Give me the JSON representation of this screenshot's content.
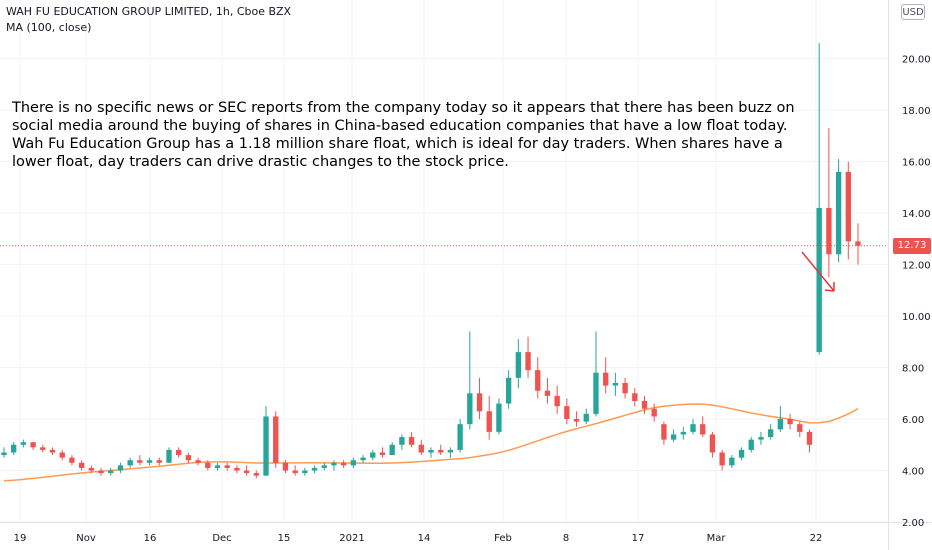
{
  "header": {
    "title": "WAH FU EDUCATION GROUP LIMITED, 1h, Cboe BZX",
    "indicator": "MA (100, close)",
    "currency": "USD"
  },
  "annotation": "There is no specific news or SEC reports from the company today so it appears that there has been buzz on social media around the buying of shares in China-based education companies that have a low float today. Wah Fu Education Group has a 1.18 million share float, which is ideal for day traders. When shares have a lower float, day traders can drive drastic changes to the stock price.",
  "last_price": "12.73",
  "colors": {
    "up": "#26a69a",
    "down": "#ef5350",
    "ma": "#ff9a52",
    "arrow": "#e53935",
    "price_line": "#ef5350"
  },
  "chart_data": {
    "type": "candlestick",
    "x_axis_labels": [
      "19",
      "Nov",
      "16",
      "Dec",
      "15",
      "2021",
      "14",
      "Feb",
      "8",
      "17",
      "Mar",
      "22"
    ],
    "y_axis_labels": [
      "2.00",
      "4.00",
      "6.00",
      "8.00",
      "10.00",
      "12.00",
      "14.00",
      "16.00",
      "18.00",
      "20.00"
    ],
    "ylim": [
      2.0,
      21.5
    ],
    "last_value": 12.73,
    "ma_period": 100,
    "candles": [
      [
        4.6,
        4.9,
        4.5,
        4.7
      ],
      [
        4.7,
        5.1,
        4.6,
        5.0
      ],
      [
        5.0,
        5.2,
        4.9,
        5.1
      ],
      [
        5.1,
        5.1,
        4.8,
        4.9
      ],
      [
        4.9,
        5.0,
        4.7,
        4.8
      ],
      [
        4.8,
        4.9,
        4.6,
        4.7
      ],
      [
        4.7,
        4.8,
        4.4,
        4.5
      ],
      [
        4.5,
        4.6,
        4.2,
        4.3
      ],
      [
        4.3,
        4.4,
        4.0,
        4.1
      ],
      [
        4.1,
        4.2,
        3.9,
        4.0
      ],
      [
        4.0,
        4.1,
        3.8,
        3.9
      ],
      [
        3.9,
        4.1,
        3.8,
        4.0
      ],
      [
        4.0,
        4.3,
        3.9,
        4.2
      ],
      [
        4.2,
        4.5,
        4.1,
        4.4
      ],
      [
        4.4,
        4.6,
        4.2,
        4.3
      ],
      [
        4.3,
        4.5,
        4.2,
        4.4
      ],
      [
        4.4,
        4.5,
        4.2,
        4.3
      ],
      [
        4.3,
        4.9,
        4.3,
        4.8
      ],
      [
        4.8,
        4.9,
        4.5,
        4.6
      ],
      [
        4.6,
        4.7,
        4.3,
        4.4
      ],
      [
        4.4,
        4.5,
        4.2,
        4.3
      ],
      [
        4.3,
        4.4,
        4.0,
        4.1
      ],
      [
        4.1,
        4.3,
        4.0,
        4.2
      ],
      [
        4.2,
        4.3,
        4.0,
        4.1
      ],
      [
        4.1,
        4.2,
        3.9,
        4.0
      ],
      [
        4.0,
        4.2,
        3.8,
        3.9
      ],
      [
        3.9,
        4.0,
        3.7,
        3.8
      ],
      [
        3.8,
        6.5,
        3.8,
        6.1
      ],
      [
        6.1,
        6.3,
        4.1,
        4.3
      ],
      [
        4.3,
        4.4,
        3.9,
        4.0
      ],
      [
        4.0,
        4.2,
        3.8,
        3.9
      ],
      [
        3.9,
        4.1,
        3.8,
        4.0
      ],
      [
        4.0,
        4.2,
        3.9,
        4.1
      ],
      [
        4.1,
        4.3,
        4.0,
        4.2
      ],
      [
        4.2,
        4.4,
        4.0,
        4.3
      ],
      [
        4.3,
        4.4,
        4.1,
        4.2
      ],
      [
        4.2,
        4.5,
        4.1,
        4.4
      ],
      [
        4.4,
        4.6,
        4.3,
        4.5
      ],
      [
        4.5,
        4.8,
        4.4,
        4.7
      ],
      [
        4.7,
        4.9,
        4.5,
        4.6
      ],
      [
        4.6,
        5.1,
        4.6,
        5.0
      ],
      [
        5.0,
        5.4,
        4.8,
        5.3
      ],
      [
        5.3,
        5.5,
        4.9,
        5.0
      ],
      [
        5.0,
        5.2,
        4.6,
        4.7
      ],
      [
        4.7,
        4.9,
        4.5,
        4.8
      ],
      [
        4.8,
        5.0,
        4.6,
        4.7
      ],
      [
        4.7,
        4.9,
        4.5,
        4.8
      ],
      [
        4.8,
        6.0,
        4.7,
        5.8
      ],
      [
        5.8,
        9.4,
        5.6,
        7.0
      ],
      [
        7.0,
        7.6,
        6.0,
        6.3
      ],
      [
        6.3,
        6.9,
        5.2,
        5.5
      ],
      [
        5.5,
        6.8,
        5.4,
        6.6
      ],
      [
        6.6,
        7.9,
        6.4,
        7.6
      ],
      [
        7.6,
        9.1,
        7.2,
        8.6
      ],
      [
        8.6,
        9.2,
        7.6,
        7.9
      ],
      [
        7.9,
        8.4,
        6.8,
        7.1
      ],
      [
        7.1,
        7.6,
        6.6,
        6.9
      ],
      [
        6.9,
        7.3,
        6.2,
        6.5
      ],
      [
        6.5,
        6.8,
        5.8,
        6.0
      ],
      [
        6.0,
        6.3,
        5.7,
        5.9
      ],
      [
        5.9,
        6.4,
        5.8,
        6.2
      ],
      [
        6.2,
        9.4,
        6.1,
        7.8
      ],
      [
        7.8,
        8.4,
        7.0,
        7.3
      ],
      [
        7.3,
        7.8,
        6.9,
        7.4
      ],
      [
        7.4,
        7.6,
        6.8,
        7.0
      ],
      [
        7.0,
        7.2,
        6.5,
        6.7
      ],
      [
        6.7,
        6.9,
        6.2,
        6.4
      ],
      [
        6.4,
        6.6,
        5.9,
        6.1
      ],
      [
        5.8,
        5.9,
        5.0,
        5.2
      ],
      [
        5.2,
        5.6,
        5.1,
        5.4
      ],
      [
        5.4,
        5.7,
        5.2,
        5.5
      ],
      [
        5.5,
        6.0,
        5.4,
        5.8
      ],
      [
        5.8,
        6.1,
        5.3,
        5.4
      ],
      [
        5.4,
        5.5,
        4.5,
        4.7
      ],
      [
        4.7,
        4.8,
        4.0,
        4.2
      ],
      [
        4.2,
        4.6,
        4.1,
        4.5
      ],
      [
        4.5,
        4.9,
        4.4,
        4.8
      ],
      [
        4.8,
        5.3,
        4.7,
        5.2
      ],
      [
        5.2,
        5.5,
        5.0,
        5.3
      ],
      [
        5.3,
        5.8,
        5.2,
        5.6
      ],
      [
        5.6,
        6.5,
        5.5,
        6.0
      ],
      [
        6.0,
        6.2,
        5.6,
        5.8
      ],
      [
        5.8,
        5.9,
        5.3,
        5.5
      ],
      [
        5.5,
        5.6,
        4.7,
        5.0
      ],
      [
        8.6,
        20.6,
        8.5,
        14.2
      ],
      [
        14.2,
        17.3,
        11.5,
        12.4
      ],
      [
        12.4,
        16.1,
        12.1,
        15.6
      ],
      [
        15.6,
        16.0,
        12.2,
        12.9
      ],
      [
        12.9,
        13.6,
        12.0,
        12.73
      ]
    ]
  }
}
